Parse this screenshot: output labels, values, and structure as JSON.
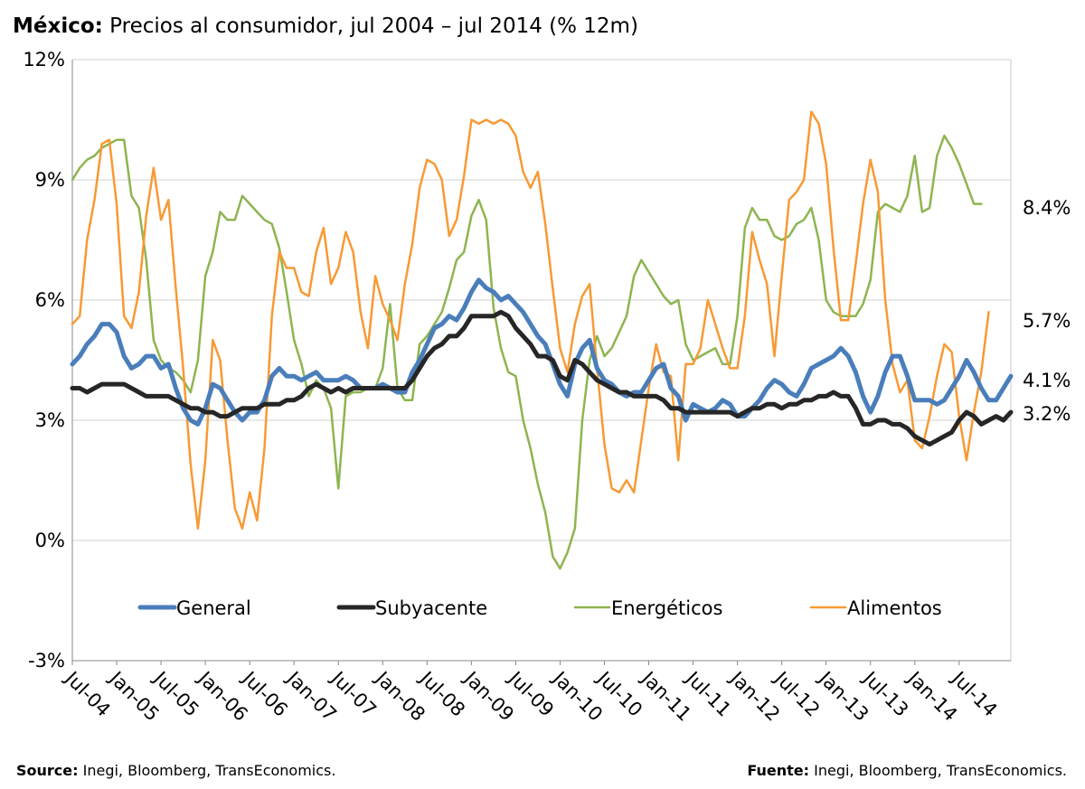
{
  "title": {
    "country": "México:",
    "text": "Precios al consumidor, jul 2004 – jul 2014 (% 12m)"
  },
  "footer": {
    "left_label": "Source:",
    "left_text": "Inegi, Bloomberg, TransEconomics.",
    "right_label": "Fuente:",
    "right_text": "Inegi, Bloomberg, TransEconomics."
  },
  "chart_data": {
    "type": "line",
    "ylim": [
      -3,
      12
    ],
    "yticks": [
      -3,
      0,
      3,
      6,
      9,
      12
    ],
    "ytick_labels": [
      "-3%",
      "0%",
      "3%",
      "6%",
      "9%",
      "12%"
    ],
    "x_start": "2004-07",
    "x_end": "2014-07",
    "xtick_labels": [
      "Jul-04",
      "Jan-05",
      "Jul-05",
      "Jan-06",
      "Jul-06",
      "Jan-07",
      "Jul-07",
      "Jan-08",
      "Jul-08",
      "Jan-09",
      "Jul-09",
      "Jan-10",
      "Jul-10",
      "Jan-11",
      "Jul-11",
      "Jan-12",
      "Jul-12",
      "Jan-13",
      "Jul-13",
      "Jan-14",
      "Jul-14"
    ],
    "grid": "horizontal",
    "legend_position": "lower-middle",
    "end_labels": [
      "8.4%",
      "5.7%",
      "4.1%",
      "3.2%"
    ],
    "series": [
      {
        "name": "General",
        "color": "#4a7ebb",
        "values": [
          4.4,
          4.6,
          4.9,
          5.1,
          5.4,
          5.4,
          5.2,
          4.6,
          4.3,
          4.4,
          4.6,
          4.6,
          4.3,
          4.4,
          3.8,
          3.3,
          3.0,
          2.9,
          3.3,
          3.9,
          3.8,
          3.5,
          3.2,
          3.0,
          3.2,
          3.2,
          3.5,
          4.1,
          4.3,
          4.1,
          4.1,
          4.0,
          4.1,
          4.2,
          4.0,
          4.0,
          4.0,
          4.1,
          4.0,
          3.8,
          3.8,
          3.8,
          3.9,
          3.8,
          3.7,
          3.7,
          4.2,
          4.5,
          4.9,
          5.3,
          5.4,
          5.6,
          5.5,
          5.8,
          6.2,
          6.5,
          6.3,
          6.2,
          6.0,
          6.1,
          5.9,
          5.7,
          5.4,
          5.1,
          4.9,
          4.4,
          3.9,
          3.6,
          4.4,
          4.8,
          5.0,
          4.3,
          4.0,
          3.9,
          3.7,
          3.6,
          3.7,
          3.7,
          4.0,
          4.3,
          4.4,
          3.8,
          3.6,
          3.0,
          3.4,
          3.3,
          3.2,
          3.3,
          3.5,
          3.4,
          3.1,
          3.1,
          3.3,
          3.5,
          3.8,
          4.0,
          3.9,
          3.7,
          3.6,
          3.9,
          4.3,
          4.4,
          4.5,
          4.6,
          4.8,
          4.6,
          4.2,
          3.6,
          3.2,
          3.6,
          4.2,
          4.6,
          4.6,
          4.1,
          3.5,
          3.5,
          3.5,
          3.4,
          3.5,
          3.8,
          4.1,
          4.5,
          4.2,
          3.8,
          3.5,
          3.5,
          3.8,
          4.1
        ]
      },
      {
        "name": "Subyacente",
        "color": "#262626",
        "values": [
          3.8,
          3.8,
          3.7,
          3.8,
          3.9,
          3.9,
          3.9,
          3.9,
          3.8,
          3.7,
          3.6,
          3.6,
          3.6,
          3.6,
          3.5,
          3.4,
          3.3,
          3.3,
          3.2,
          3.2,
          3.1,
          3.1,
          3.2,
          3.3,
          3.3,
          3.3,
          3.4,
          3.4,
          3.4,
          3.5,
          3.5,
          3.6,
          3.8,
          3.9,
          3.8,
          3.7,
          3.8,
          3.7,
          3.8,
          3.8,
          3.8,
          3.8,
          3.8,
          3.8,
          3.8,
          3.8,
          4.0,
          4.3,
          4.6,
          4.8,
          4.9,
          5.1,
          5.1,
          5.3,
          5.6,
          5.6,
          5.6,
          5.6,
          5.7,
          5.6,
          5.3,
          5.1,
          4.9,
          4.6,
          4.6,
          4.5,
          4.1,
          4.0,
          4.5,
          4.4,
          4.2,
          4.0,
          3.9,
          3.8,
          3.7,
          3.7,
          3.6,
          3.6,
          3.6,
          3.6,
          3.5,
          3.3,
          3.3,
          3.2,
          3.2,
          3.2,
          3.2,
          3.2,
          3.2,
          3.2,
          3.1,
          3.2,
          3.3,
          3.3,
          3.4,
          3.4,
          3.3,
          3.4,
          3.4,
          3.5,
          3.5,
          3.6,
          3.6,
          3.7,
          3.6,
          3.6,
          3.3,
          2.9,
          2.9,
          3.0,
          3.0,
          2.9,
          2.9,
          2.8,
          2.6,
          2.5,
          2.4,
          2.5,
          2.6,
          2.7,
          3.0,
          3.2,
          3.1,
          2.9,
          3.0,
          3.1,
          3.0,
          3.2
        ]
      },
      {
        "name": "Energéticos",
        "color": "#8db550",
        "values": [
          9.0,
          9.3,
          9.5,
          9.6,
          9.8,
          9.9,
          10.0,
          10.0,
          8.6,
          8.3,
          7.0,
          5.0,
          4.5,
          4.3,
          4.2,
          4.0,
          3.7,
          4.5,
          6.6,
          7.2,
          8.2,
          8.0,
          8.0,
          8.6,
          8.4,
          8.2,
          8.0,
          7.9,
          7.3,
          6.2,
          5.0,
          4.4,
          3.6,
          4.0,
          3.8,
          3.3,
          1.3,
          3.6,
          3.7,
          3.7,
          3.8,
          3.8,
          4.3,
          5.9,
          3.8,
          3.5,
          3.5,
          4.9,
          5.1,
          5.4,
          5.7,
          6.3,
          7.0,
          7.2,
          8.1,
          8.5,
          8.0,
          5.8,
          4.8,
          4.2,
          4.1,
          3.0,
          2.3,
          1.4,
          0.7,
          -0.4,
          -0.7,
          -0.3,
          0.3,
          3.0,
          4.5,
          5.1,
          4.6,
          4.8,
          5.2,
          5.6,
          6.6,
          7.0,
          6.7,
          6.4,
          6.1,
          5.9,
          6.0,
          4.9,
          4.5,
          4.6,
          4.7,
          4.8,
          4.4,
          4.4,
          5.6,
          7.8,
          8.3,
          8.0,
          8.0,
          7.6,
          7.5,
          7.6,
          7.9,
          8.0,
          8.3,
          7.5,
          6.0,
          5.7,
          5.6,
          5.6,
          5.6,
          5.9,
          6.5,
          8.2,
          8.4,
          8.3,
          8.2,
          8.6,
          9.6,
          8.2,
          8.3,
          9.6,
          10.1,
          9.8,
          9.4,
          8.9,
          8.4,
          8.4
        ]
      },
      {
        "name": "Alimentos",
        "color": "#f79a34",
        "values": [
          5.4,
          5.6,
          7.5,
          8.5,
          9.9,
          10.0,
          8.4,
          5.6,
          5.3,
          6.2,
          8.1,
          9.3,
          8.0,
          8.5,
          6.3,
          4.3,
          1.9,
          0.3,
          2.0,
          5.0,
          4.5,
          2.5,
          0.8,
          0.3,
          1.2,
          0.5,
          2.3,
          5.6,
          7.2,
          6.8,
          6.8,
          6.2,
          6.1,
          7.2,
          7.8,
          6.4,
          6.8,
          7.7,
          7.2,
          5.7,
          4.8,
          6.6,
          5.9,
          5.5,
          5.0,
          6.4,
          7.4,
          8.8,
          9.5,
          9.4,
          9.0,
          7.6,
          8.0,
          9.1,
          10.5,
          10.4,
          10.5,
          10.4,
          10.5,
          10.4,
          10.1,
          9.2,
          8.8,
          9.2,
          7.9,
          6.3,
          4.8,
          4.2,
          5.4,
          6.1,
          6.4,
          4.3,
          2.4,
          1.3,
          1.2,
          1.5,
          1.2,
          2.5,
          3.8,
          4.9,
          4.2,
          4.1,
          2.0,
          4.4,
          4.4,
          4.8,
          6.0,
          5.4,
          4.8,
          4.3,
          4.3,
          5.6,
          7.7,
          7.0,
          6.4,
          4.6,
          6.6,
          8.5,
          8.7,
          9.0,
          10.7,
          10.4,
          9.4,
          7.3,
          5.5,
          5.5,
          6.9,
          8.4,
          9.5,
          8.7,
          6.0,
          4.4,
          3.7,
          4.0,
          2.5,
          2.3,
          3.1,
          4.1,
          4.9,
          4.7,
          3.1,
          2.0,
          3.2,
          4.2,
          5.7
        ]
      }
    ]
  }
}
